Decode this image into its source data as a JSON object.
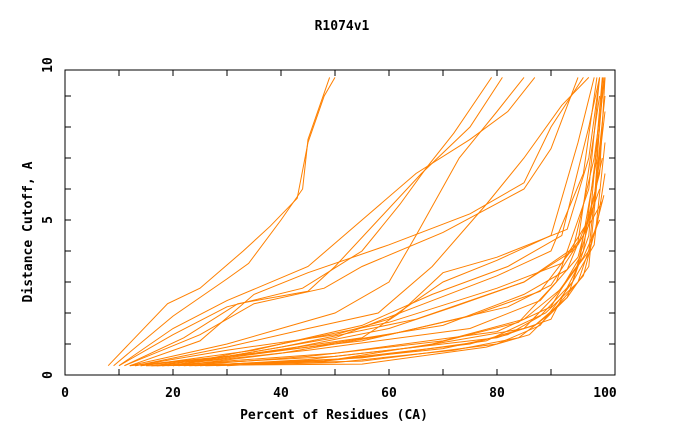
{
  "chart_data": {
    "type": "line",
    "title": "R1074v1",
    "xlabel": "Percent of Residues (CA)",
    "ylabel": "Distance Cutoff, A",
    "xlim": [
      0,
      100
    ],
    "ylim": [
      0,
      10
    ],
    "x_ticks": [
      0,
      20,
      40,
      60,
      80,
      100
    ],
    "y_ticks": [
      0,
      5,
      10
    ],
    "grid": false,
    "line_color": "#ff8000",
    "series": [
      {
        "points": [
          [
            8,
            0.3
          ],
          [
            19,
            2.3
          ],
          [
            25,
            2.8
          ],
          [
            33,
            4.0
          ],
          [
            38,
            4.8
          ],
          [
            43,
            5.7
          ],
          [
            45,
            7.5
          ],
          [
            48,
            9.0
          ],
          [
            50,
            9.6
          ]
        ]
      },
      {
        "points": [
          [
            9,
            0.3
          ],
          [
            20,
            1.9
          ],
          [
            30,
            3.1
          ],
          [
            34,
            3.6
          ],
          [
            40,
            5.0
          ],
          [
            44,
            6.0
          ],
          [
            45,
            7.6
          ],
          [
            49,
            9.6
          ]
        ]
      },
      {
        "points": [
          [
            10,
            0.3
          ],
          [
            20,
            1.5
          ],
          [
            30,
            2.4
          ],
          [
            45,
            3.5
          ],
          [
            55,
            5.0
          ],
          [
            65,
            6.5
          ],
          [
            75,
            7.6
          ],
          [
            82,
            8.5
          ],
          [
            87,
            9.6
          ]
        ]
      },
      {
        "points": [
          [
            10,
            0.3
          ],
          [
            20,
            1.3
          ],
          [
            30,
            2.2
          ],
          [
            44,
            2.8
          ],
          [
            55,
            4.0
          ],
          [
            62,
            5.5
          ],
          [
            67,
            6.7
          ],
          [
            72,
            7.8
          ],
          [
            79,
            9.6
          ]
        ]
      },
      {
        "points": [
          [
            11,
            0.3
          ],
          [
            22,
            1.2
          ],
          [
            32,
            2.3
          ],
          [
            45,
            2.7
          ],
          [
            50,
            3.5
          ],
          [
            58,
            5.0
          ],
          [
            66,
            6.5
          ],
          [
            75,
            8.0
          ],
          [
            81,
            9.6
          ]
        ]
      },
      {
        "points": [
          [
            11,
            0.3
          ],
          [
            25,
            1.3
          ],
          [
            35,
            2.3
          ],
          [
            48,
            2.8
          ],
          [
            55,
            3.5
          ],
          [
            70,
            4.6
          ],
          [
            85,
            6.0
          ],
          [
            90,
            7.3
          ],
          [
            95,
            9.6
          ]
        ]
      },
      {
        "points": [
          [
            12,
            0.3
          ],
          [
            25,
            1.1
          ],
          [
            35,
            2.6
          ],
          [
            45,
            3.3
          ],
          [
            60,
            4.2
          ],
          [
            75,
            5.2
          ],
          [
            85,
            6.2
          ],
          [
            90,
            8.0
          ],
          [
            96,
            9.6
          ]
        ]
      },
      {
        "points": [
          [
            12,
            0.3
          ],
          [
            30,
            1.0
          ],
          [
            40,
            1.5
          ],
          [
            50,
            2.0
          ],
          [
            60,
            3.0
          ],
          [
            65,
            4.5
          ],
          [
            73,
            7.0
          ],
          [
            80,
            8.5
          ],
          [
            85,
            9.6
          ]
        ]
      },
      {
        "points": [
          [
            13,
            0.3
          ],
          [
            30,
            0.9
          ],
          [
            45,
            1.5
          ],
          [
            58,
            2.0
          ],
          [
            68,
            3.5
          ],
          [
            78,
            5.5
          ],
          [
            85,
            7.0
          ],
          [
            92,
            8.7
          ],
          [
            97,
            9.6
          ]
        ]
      },
      {
        "points": [
          [
            13,
            0.3
          ],
          [
            30,
            0.8
          ],
          [
            50,
            1.3
          ],
          [
            60,
            1.8
          ],
          [
            70,
            3.0
          ],
          [
            80,
            3.7
          ],
          [
            90,
            4.5
          ],
          [
            95,
            7.5
          ],
          [
            98,
            9.6
          ]
        ]
      },
      {
        "points": [
          [
            14,
            0.3
          ],
          [
            35,
            0.7
          ],
          [
            55,
            1.2
          ],
          [
            62,
            2.0
          ],
          [
            70,
            3.3
          ],
          [
            80,
            3.8
          ],
          [
            93,
            4.7
          ],
          [
            97,
            7.0
          ],
          [
            99,
            9.6
          ]
        ]
      },
      {
        "points": [
          [
            15,
            0.3
          ],
          [
            55,
            0.35
          ],
          [
            78,
            0.9
          ],
          [
            86,
            1.3
          ],
          [
            93,
            2.5
          ],
          [
            97,
            4.5
          ],
          [
            99.5,
            9.6
          ]
        ]
      },
      {
        "points": [
          [
            16,
            0.3
          ],
          [
            55,
            0.45
          ],
          [
            80,
            1.0
          ],
          [
            88,
            1.6
          ],
          [
            94,
            3.0
          ],
          [
            98,
            5.5
          ],
          [
            99.6,
            9.6
          ]
        ]
      },
      {
        "points": [
          [
            17,
            0.3
          ],
          [
            50,
            0.6
          ],
          [
            80,
            1.2
          ],
          [
            90,
            1.8
          ],
          [
            95,
            3.5
          ],
          [
            98.5,
            7.0
          ],
          [
            99.8,
            9.6
          ]
        ]
      },
      {
        "points": [
          [
            18,
            0.3
          ],
          [
            50,
            0.7
          ],
          [
            80,
            1.4
          ],
          [
            90,
            2.2
          ],
          [
            96,
            4.0
          ],
          [
            99,
            8.0
          ]
        ]
      },
      {
        "points": [
          [
            18,
            0.3
          ],
          [
            45,
            0.8
          ],
          [
            75,
            1.5
          ],
          [
            88,
            2.4
          ],
          [
            95,
            3.8
          ],
          [
            99,
            6.5
          ],
          [
            100,
            9.6
          ]
        ]
      },
      {
        "points": [
          [
            19,
            0.3
          ],
          [
            45,
            0.9
          ],
          [
            70,
            1.6
          ],
          [
            85,
            2.6
          ],
          [
            93,
            3.4
          ],
          [
            98,
            5.5
          ],
          [
            100,
            8.5
          ]
        ]
      },
      {
        "points": [
          [
            20,
            0.3
          ],
          [
            40,
            0.9
          ],
          [
            65,
            1.8
          ],
          [
            85,
            3.0
          ],
          [
            95,
            4.2
          ],
          [
            99.5,
            5.6
          ]
        ]
      },
      {
        "points": [
          [
            20,
            0.3
          ],
          [
            40,
            1.0
          ],
          [
            60,
            1.7
          ],
          [
            80,
            2.8
          ],
          [
            92,
            3.6
          ],
          [
            97,
            5.0
          ],
          [
            99.5,
            7.0
          ]
        ]
      },
      {
        "points": [
          [
            21,
            0.3
          ],
          [
            40,
            0.7
          ],
          [
            60,
            1.3
          ],
          [
            82,
            2.2
          ],
          [
            90,
            2.9
          ],
          [
            96,
            4.5
          ],
          [
            99,
            6.0
          ]
        ]
      },
      {
        "points": [
          [
            22,
            0.3
          ],
          [
            45,
            0.6
          ],
          [
            70,
            1.1
          ],
          [
            85,
            1.8
          ],
          [
            92,
            2.8
          ],
          [
            97,
            4.0
          ],
          [
            100,
            9.0
          ]
        ]
      },
      {
        "points": [
          [
            23,
            0.3
          ],
          [
            50,
            0.5
          ],
          [
            75,
            1.0
          ],
          [
            87,
            1.6
          ],
          [
            93,
            2.5
          ],
          [
            97,
            3.5
          ],
          [
            99.5,
            8.0
          ]
        ]
      },
      {
        "points": [
          [
            24,
            0.3
          ],
          [
            55,
            0.55
          ],
          [
            78,
            1.1
          ],
          [
            89,
            2.0
          ],
          [
            95,
            3.0
          ],
          [
            98.5,
            4.8
          ],
          [
            100,
            6.5
          ]
        ]
      },
      {
        "points": [
          [
            25,
            0.3
          ],
          [
            45,
            0.5
          ],
          [
            65,
            0.9
          ],
          [
            85,
            1.5
          ],
          [
            91,
            2.6
          ],
          [
            96,
            3.8
          ],
          [
            99,
            5.0
          ]
        ]
      },
      {
        "points": [
          [
            26,
            0.3
          ],
          [
            50,
            0.4
          ],
          [
            72,
            0.8
          ],
          [
            84,
            1.2
          ],
          [
            90,
            2.0
          ],
          [
            96,
            3.2
          ],
          [
            99.8,
            5.8
          ]
        ]
      },
      {
        "points": [
          [
            28,
            0.3
          ],
          [
            48,
            0.45
          ],
          [
            70,
            0.85
          ],
          [
            82,
            1.3
          ],
          [
            88,
            1.9
          ],
          [
            94,
            3.0
          ],
          [
            98,
            4.2
          ],
          [
            100,
            7.5
          ]
        ]
      },
      {
        "points": [
          [
            30,
            0.3
          ],
          [
            50,
            0.5
          ],
          [
            68,
            1.0
          ],
          [
            84,
            1.7
          ],
          [
            91,
            3.0
          ],
          [
            97,
            6.0
          ],
          [
            99,
            9.6
          ]
        ]
      },
      {
        "points": [
          [
            12,
            0.3
          ],
          [
            30,
            0.6
          ],
          [
            50,
            1.2
          ],
          [
            65,
            2.2
          ],
          [
            80,
            3.2
          ],
          [
            90,
            4.0
          ],
          [
            96,
            6.5
          ],
          [
            98.5,
            9.6
          ]
        ]
      },
      {
        "points": [
          [
            14,
            0.3
          ],
          [
            35,
            0.8
          ],
          [
            55,
            1.6
          ],
          [
            68,
            2.6
          ],
          [
            82,
            3.5
          ],
          [
            92,
            4.5
          ],
          [
            97,
            8.0
          ],
          [
            99,
            9.6
          ]
        ]
      },
      {
        "points": [
          [
            16,
            0.3
          ],
          [
            40,
            0.8
          ],
          [
            60,
            1.5
          ],
          [
            72,
            2.2
          ],
          [
            85,
            3.0
          ],
          [
            94,
            4.0
          ],
          [
            98,
            7.0
          ],
          [
            100,
            9.6
          ]
        ]
      },
      {
        "points": [
          [
            17,
            0.3
          ],
          [
            35,
            0.7
          ],
          [
            55,
            1.1
          ],
          [
            75,
            1.9
          ],
          [
            88,
            2.7
          ],
          [
            95,
            4.3
          ],
          [
            99,
            9.0
          ]
        ]
      }
    ]
  }
}
